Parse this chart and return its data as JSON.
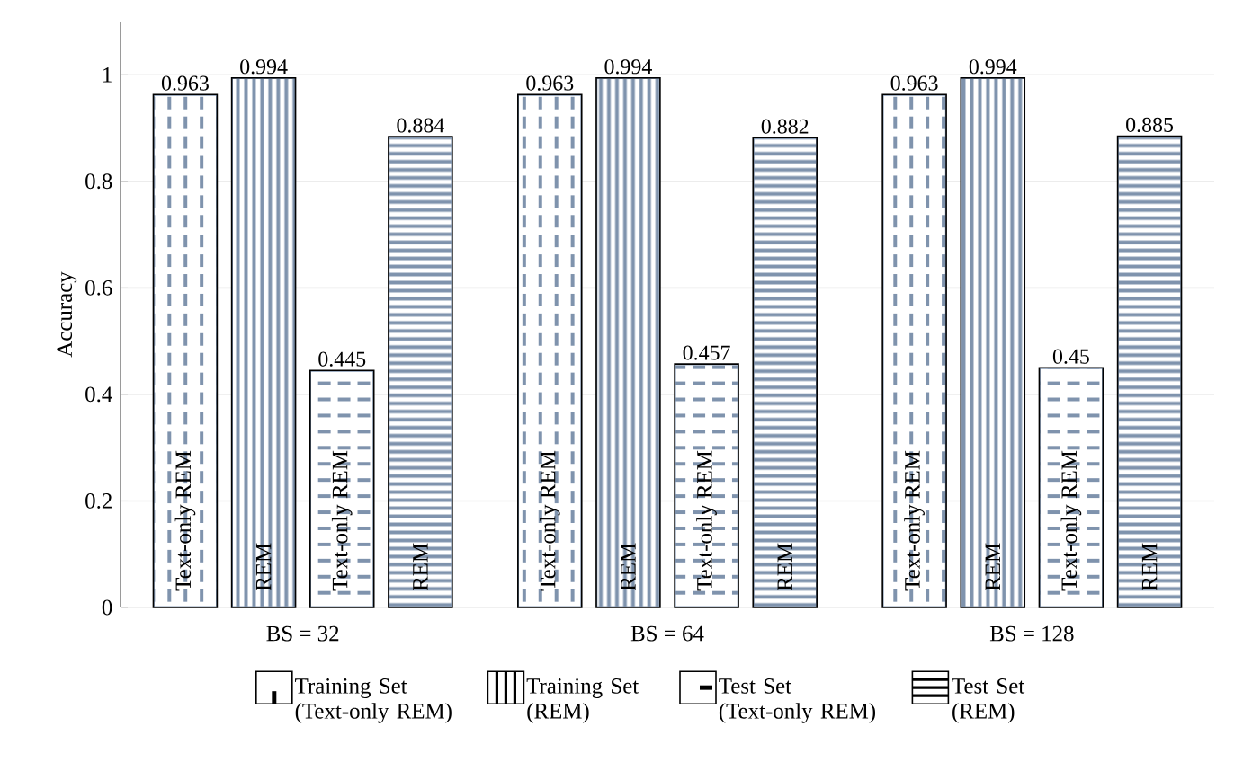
{
  "chart_data": {
    "type": "bar",
    "ylabel": "Accuracy",
    "categories": [
      "BS = 32",
      "BS = 64",
      "BS = 128"
    ],
    "series": [
      {
        "name": "Training Set (Text-only REM)",
        "color": "#7f93ad",
        "values": [
          0.963,
          0.963,
          0.963
        ],
        "value_labels": [
          "0.963",
          "0.963",
          "0.963"
        ]
      },
      {
        "name": "Training Set (REM)",
        "color": "#7f93ad",
        "values": [
          0.994,
          0.994,
          0.994
        ],
        "value_labels": [
          "0.994",
          "0.994",
          "0.994"
        ]
      },
      {
        "name": "Test Set (Text-only REM)",
        "color": "#7f93ad",
        "values": [
          0.445,
          0.457,
          0.45
        ],
        "value_labels": [
          "0.445",
          "0.457",
          "0.45"
        ]
      },
      {
        "name": "Test Set (REM)",
        "color": "#7f93ad",
        "values": [
          0.884,
          0.882,
          0.885
        ],
        "value_labels": [
          "0.884",
          "0.882",
          "0.885"
        ]
      }
    ],
    "annotations": [
      "Text-only REM",
      "REM",
      "Text-only REM",
      "REM",
      "Text-only REM",
      "REM",
      "Text-only REM",
      "REM",
      "Text-only REM",
      "REM",
      "Text-only REM",
      "REM"
    ],
    "ylim": [
      0,
      1.1
    ],
    "yticks": [
      0,
      0.2,
      0.4,
      0.6,
      0.8,
      1
    ],
    "grid": "y",
    "legend": "bottom"
  }
}
